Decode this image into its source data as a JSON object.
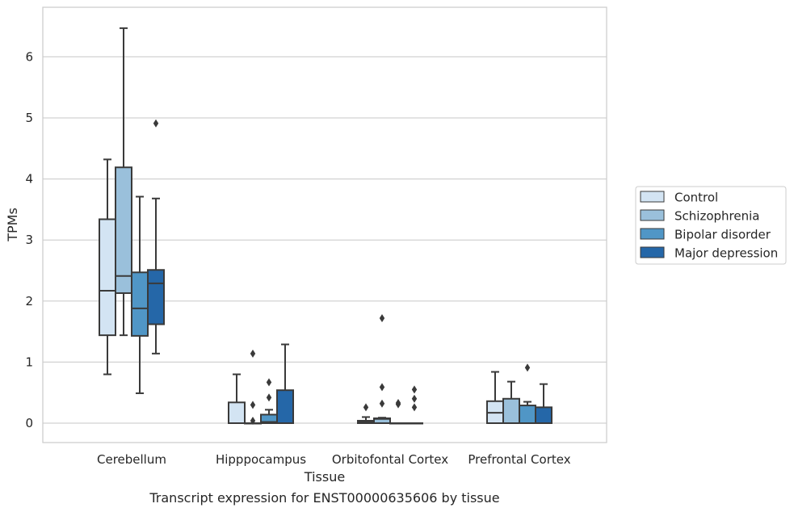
{
  "chart_data": {
    "type": "box",
    "caption": "Transcript expression for ENST00000635606 by tissue",
    "xlabel": "Tissue",
    "ylabel": "TPMs",
    "ylim": [
      -0.32,
      6.82
    ],
    "yticks": [
      0,
      1,
      2,
      3,
      4,
      5,
      6
    ],
    "grid": "horizontal",
    "legend_position": "right",
    "categories": [
      "Cerebellum",
      "Hipppocampus",
      "Orbitofontal Cortex",
      "Prefrontal Cortex"
    ],
    "series": [
      {
        "name": "Control",
        "color": "#d3e4f3",
        "boxes": [
          {
            "whislo": 0.8,
            "q1": 1.44,
            "med": 2.17,
            "q3": 3.34,
            "whishi": 4.32,
            "fliers": []
          },
          {
            "whislo": 0,
            "q1": 0,
            "med": 0,
            "q3": 0.34,
            "whishi": 0.8,
            "fliers": []
          },
          {
            "whislo": 0,
            "q1": 0,
            "med": 0.02,
            "q3": 0.04,
            "whishi": 0.1,
            "fliers": [
              0.26
            ]
          },
          {
            "whislo": 0,
            "q1": 0,
            "med": 0.17,
            "q3": 0.36,
            "whishi": 0.84,
            "fliers": []
          }
        ]
      },
      {
        "name": "Schizophrenia",
        "color": "#9ac0db",
        "boxes": [
          {
            "whislo": 1.44,
            "q1": 2.13,
            "med": 2.41,
            "q3": 4.19,
            "whishi": 6.47,
            "fliers": []
          },
          {
            "whislo": 0,
            "q1": 0,
            "med": 0,
            "q3": 0,
            "whishi": 0,
            "fliers": [
              0.04,
              0.3,
              1.14
            ]
          },
          {
            "whislo": 0,
            "q1": 0,
            "med": 0.07,
            "q3": 0.08,
            "whishi": 0.09,
            "fliers": [
              0.32,
              0.59,
              1.72
            ]
          },
          {
            "whislo": 0,
            "q1": 0,
            "med": 0,
            "q3": 0.4,
            "whishi": 0.68,
            "fliers": []
          }
        ]
      },
      {
        "name": "Bipolar disorder",
        "color": "#5096c6",
        "boxes": [
          {
            "whislo": 0.49,
            "q1": 1.43,
            "med": 1.88,
            "q3": 2.47,
            "whishi": 3.71,
            "fliers": []
          },
          {
            "whislo": 0,
            "q1": 0,
            "med": 0.02,
            "q3": 0.14,
            "whishi": 0.22,
            "fliers": [
              0.42,
              0.67
            ]
          },
          {
            "whislo": 0,
            "q1": 0,
            "med": 0,
            "q3": 0,
            "whishi": 0,
            "fliers": [
              0.31,
              0.33
            ]
          },
          {
            "whislo": 0,
            "q1": 0,
            "med": 0,
            "q3": 0.29,
            "whishi": 0.35,
            "fliers": [
              0.91
            ]
          }
        ]
      },
      {
        "name": "Major depression",
        "color": "#2567a8",
        "boxes": [
          {
            "whislo": 1.14,
            "q1": 1.62,
            "med": 2.29,
            "q3": 2.51,
            "whishi": 3.68,
            "fliers": [
              4.91
            ]
          },
          {
            "whislo": 0,
            "q1": 0,
            "med": 0,
            "q3": 0.54,
            "whishi": 1.29,
            "fliers": []
          },
          {
            "whislo": 0,
            "q1": 0,
            "med": 0,
            "q3": 0,
            "whishi": 0,
            "fliers": [
              0.26,
              0.4,
              0.55
            ]
          },
          {
            "whislo": 0,
            "q1": 0,
            "med": 0,
            "q3": 0.26,
            "whishi": 0.64,
            "fliers": []
          }
        ]
      }
    ]
  }
}
